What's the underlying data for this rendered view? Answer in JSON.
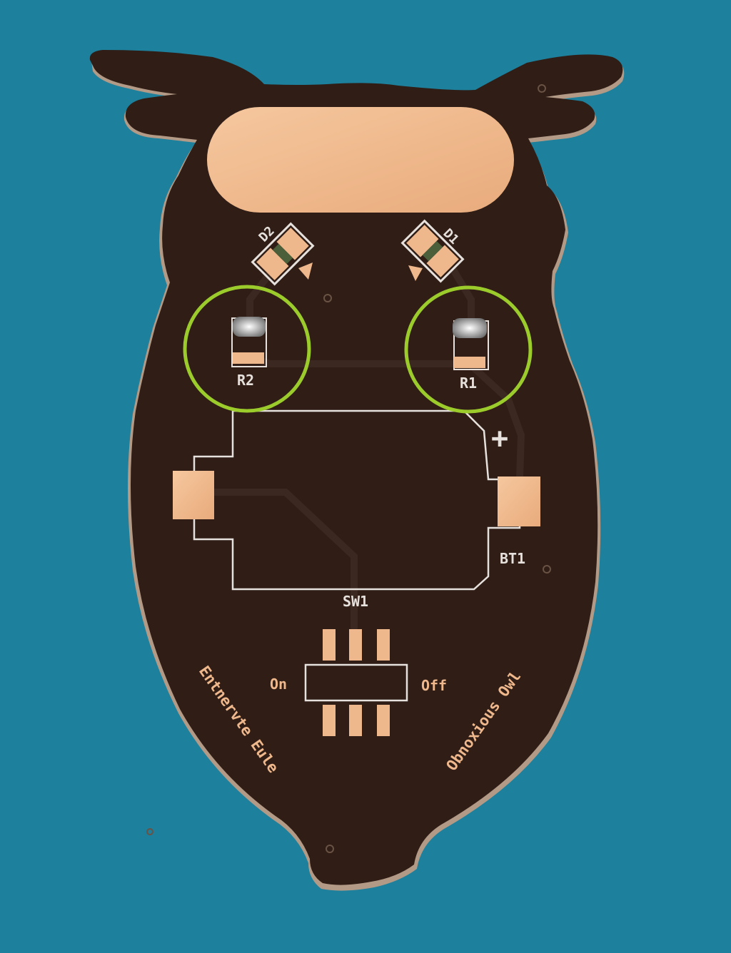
{
  "photo": {
    "background_color": "#1d809c",
    "board_color": "#2f1d16",
    "board_edge_color": "#b49a86",
    "copper_color": "#efb88c",
    "silkscreen_color": "#e6e1dc",
    "highlight_color": "#9ccc2c"
  },
  "designators": {
    "d1": "D1",
    "d2": "D2",
    "r1": "R1",
    "r2": "R2",
    "bt1": "BT1",
    "sw1": "SW1",
    "plus": "+"
  },
  "switch_labels": {
    "on": "On",
    "off": "Off"
  },
  "board_text": {
    "left": "Entnervte Eule",
    "right": "Obnoxious Owl"
  },
  "annotations": {
    "highlight_shape": "circle",
    "highlighted_parts": [
      "R2",
      "R1"
    ]
  }
}
